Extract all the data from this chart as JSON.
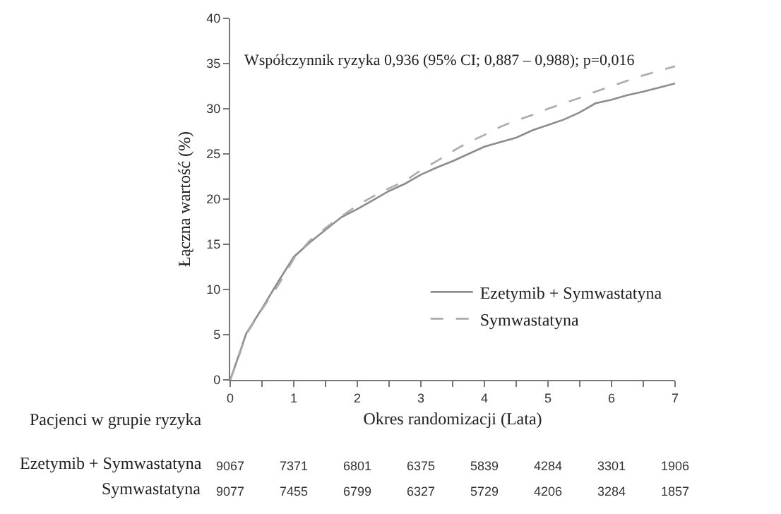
{
  "chart_data": {
    "type": "line",
    "xlabel": "Okres randomizacji (Lata)",
    "ylabel": "Łączna wartość (%)",
    "xlim": [
      0,
      7
    ],
    "xticks": [
      0,
      {
        "value": 0.5,
        "label": null
      },
      1,
      {
        "value": 1.5,
        "label": null
      },
      2,
      {
        "value": 2.5,
        "label": null
      },
      3,
      {
        "value": 3.5,
        "label": null
      },
      4,
      {
        "value": 4.5,
        "label": null
      },
      5,
      {
        "value": 5.5,
        "label": null
      },
      6,
      {
        "value": 6.5,
        "label": null
      },
      7
    ],
    "ylim": [
      0,
      40
    ],
    "yticks": [
      0,
      5,
      10,
      15,
      20,
      25,
      30,
      35,
      40
    ],
    "legend": "bottom right",
    "x": [
      0,
      0.1,
      0.25,
      0.5,
      0.75,
      1.0,
      1.25,
      1.5,
      1.75,
      2.0,
      2.25,
      2.5,
      2.75,
      3.0,
      3.25,
      3.5,
      3.75,
      4.0,
      4.25,
      4.5,
      4.75,
      5.0,
      5.25,
      5.5,
      5.75,
      6.0,
      6.25,
      6.5,
      7.0
    ],
    "series": [
      {
        "name": "Ezetymib + Symwastatyna",
        "color": "#8c8c8c",
        "line_style": "solid",
        "values": [
          0,
          2.0,
          5.1,
          7.9,
          10.8,
          13.6,
          15.2,
          16.6,
          18.0,
          18.9,
          19.9,
          20.9,
          21.7,
          22.7,
          23.5,
          24.2,
          25.0,
          25.8,
          26.3,
          26.8,
          27.6,
          28.2,
          28.8,
          29.6,
          30.6,
          31.0,
          31.5,
          31.9,
          32.8
        ]
      },
      {
        "name": "Symwastatyna",
        "color": "#ababab",
        "line_style": "dashed",
        "values": [
          0,
          1.8,
          5.0,
          7.8,
          10.4,
          13.4,
          15.4,
          16.8,
          18.1,
          19.3,
          20.3,
          21.2,
          22.0,
          23.2,
          24.2,
          25.3,
          26.3,
          27.1,
          28.0,
          28.7,
          29.3,
          30.0,
          30.6,
          31.2,
          31.9,
          32.5,
          33.1,
          33.7,
          34.7
        ]
      }
    ],
    "annotations": [
      "Współczynnik ryzyka 0,936 (95% CI; 0,887 – 0,988); p=0,016",
      "Pacjenci w grupie ryzyka",
      "Ezetymib + Symwastatyna",
      "Symwastatyna",
      "9067",
      "7371",
      "6801",
      "6375",
      "5839",
      "4284",
      "3301",
      "1906",
      "9077",
      "7455",
      "6799",
      "6327",
      "5729",
      "4206",
      "3284",
      "1857"
    ]
  }
}
